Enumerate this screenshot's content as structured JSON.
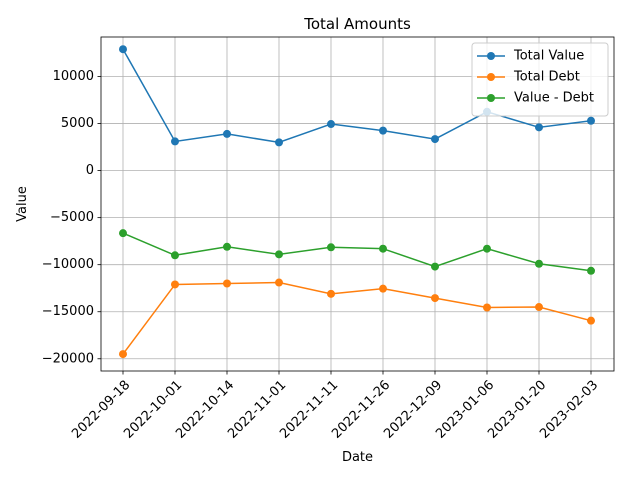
{
  "chart_data": {
    "type": "line",
    "title": "Total Amounts",
    "xlabel": "Date",
    "ylabel": "Value",
    "categories": [
      "2022-09-18",
      "2022-10-01",
      "2022-10-14",
      "2022-11-01",
      "2022-11-11",
      "2022-11-26",
      "2022-12-09",
      "2023-01-06",
      "2023-01-20",
      "2023-02-03"
    ],
    "yticks": [
      -20000,
      -15000,
      -10000,
      -5000,
      0,
      5000,
      10000
    ],
    "ylim": [
      -21300,
      14200
    ],
    "grid": true,
    "legend_position": "top-right",
    "series": [
      {
        "name": "Total Value",
        "color": "#1f77b4",
        "values": [
          12900,
          3100,
          3900,
          3000,
          4950,
          4250,
          3350,
          6250,
          4600,
          5300
        ]
      },
      {
        "name": "Total Debt",
        "color": "#ff7f0e",
        "values": [
          -19500,
          -12100,
          -12000,
          -11900,
          -13100,
          -12550,
          -13550,
          -14550,
          -14500,
          -15950
        ]
      },
      {
        "name": "Value - Debt",
        "color": "#2ca02c",
        "values": [
          -6650,
          -9000,
          -8100,
          -8900,
          -8150,
          -8300,
          -10200,
          -8300,
          -9900,
          -10650
        ]
      }
    ]
  }
}
